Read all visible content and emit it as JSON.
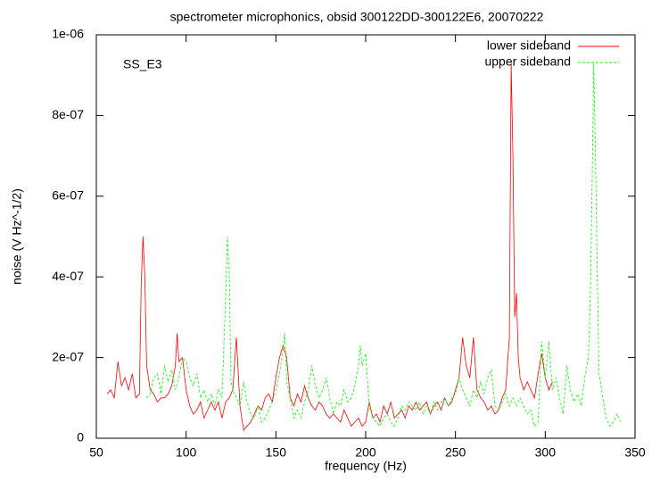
{
  "chart_data": {
    "type": "line",
    "title": "spectrometer microphonics, obsid 300122DD-300122E6, 20070222",
    "xlabel": "frequency (Hz)",
    "ylabel": "noise (V Hz^-1/2)",
    "annotation": "SS_E3",
    "xlim": [
      50,
      350
    ],
    "xticks": [
      50,
      100,
      150,
      200,
      250,
      300,
      350
    ],
    "ylim": [
      0,
      1e-06
    ],
    "yticks": [
      0,
      {
        "value": 2e-07,
        "label": "2e-07"
      },
      {
        "value": 4e-07,
        "label": "4e-07"
      },
      {
        "value": 6e-07,
        "label": "6e-07"
      },
      {
        "value": 8e-07,
        "label": "8e-07"
      },
      {
        "value": 1e-06,
        "label": "1e-06"
      }
    ],
    "legend": "top-right",
    "series": [
      {
        "name": "lower sideband",
        "color": "#ff0000",
        "dash": false,
        "x": [
          56,
          58,
          60,
          62,
          64,
          66,
          68,
          70,
          72,
          74,
          75,
          76,
          77,
          78,
          80,
          82,
          84,
          86,
          88,
          90,
          92,
          94,
          95,
          96,
          98,
          100,
          102,
          104,
          106,
          108,
          110,
          112,
          114,
          116,
          118,
          120,
          122,
          124,
          126,
          128,
          130,
          132,
          134,
          136,
          138,
          140,
          142,
          144,
          146,
          148,
          150,
          152,
          154,
          156,
          158,
          160,
          162,
          164,
          166,
          168,
          170,
          172,
          174,
          176,
          178,
          180,
          182,
          184,
          186,
          188,
          190,
          192,
          194,
          196,
          198,
          200,
          202,
          204,
          206,
          208,
          210,
          212,
          214,
          216,
          218,
          220,
          222,
          224,
          226,
          228,
          230,
          232,
          234,
          236,
          238,
          240,
          242,
          244,
          246,
          248,
          250,
          252,
          254,
          256,
          258,
          260,
          262,
          264,
          266,
          268,
          270,
          272,
          274,
          276,
          278,
          280,
          281,
          282,
          283,
          284,
          285,
          286,
          288,
          290,
          292,
          294,
          296,
          298,
          300,
          302,
          304
        ],
        "values": [
          1.1e-07,
          1.2e-07,
          1e-07,
          1.9e-07,
          1.3e-07,
          1.5e-07,
          1.2e-07,
          1.6e-07,
          1e-07,
          1.1e-07,
          3.8e-07,
          5e-07,
          4e-07,
          1.8e-07,
          1.2e-07,
          1.1e-07,
          9e-08,
          1e-07,
          1e-07,
          1.1e-07,
          1.3e-07,
          1.8e-07,
          2.6e-07,
          1.9e-07,
          2e-07,
          1.2e-07,
          8e-08,
          6e-08,
          7e-08,
          9e-08,
          5e-08,
          7e-08,
          9e-08,
          7e-08,
          9e-08,
          5e-08,
          9e-08,
          1e-07,
          1.2e-07,
          2.5e-07,
          8e-08,
          2e-08,
          3e-08,
          4e-08,
          6e-08,
          8e-08,
          7e-08,
          1e-07,
          1.1e-07,
          9e-08,
          1.5e-07,
          2e-07,
          2.3e-07,
          2e-07,
          1e-07,
          8e-08,
          1.1e-07,
          9e-08,
          1.3e-07,
          1e-07,
          8e-08,
          7e-08,
          9e-08,
          8e-08,
          6e-08,
          5e-08,
          6e-08,
          5e-08,
          4e-08,
          7e-08,
          5e-08,
          3e-08,
          4e-08,
          5e-08,
          3e-08,
          4e-08,
          9e-08,
          5e-08,
          6e-08,
          4e-08,
          8e-08,
          6e-08,
          9e-08,
          5e-08,
          6e-08,
          7e-08,
          5e-08,
          8e-08,
          7e-08,
          9e-08,
          7e-08,
          8e-08,
          9e-08,
          6e-08,
          8e-08,
          9e-08,
          7e-08,
          1e-07,
          8e-08,
          9e-08,
          1.2e-07,
          1.5e-07,
          2.5e-07,
          1.8e-07,
          1.5e-07,
          2.5e-07,
          1.2e-07,
          1e-07,
          9e-08,
          7e-08,
          8e-08,
          6e-08,
          7e-08,
          1e-07,
          1.2e-07,
          2.5e-07,
          9.3e-07,
          7e-07,
          3e-07,
          3.6e-07,
          2e-07,
          1.5e-07,
          1.2e-07,
          1.4e-07,
          1.2e-07,
          1e-07,
          1.6e-07,
          2.1e-07,
          1.5e-07,
          1.2e-07,
          1.4e-07
        ]
      },
      {
        "name": "upper sideband",
        "color": "#00ff00",
        "dash": true,
        "x": [
          78,
          80,
          82,
          84,
          86,
          88,
          90,
          92,
          94,
          96,
          98,
          100,
          102,
          104,
          106,
          108,
          110,
          112,
          114,
          116,
          118,
          120,
          122,
          123,
          124,
          125,
          126,
          128,
          130,
          132,
          134,
          136,
          138,
          140,
          142,
          144,
          146,
          148,
          150,
          152,
          154,
          155,
          156,
          158,
          160,
          162,
          164,
          166,
          168,
          170,
          172,
          174,
          176,
          178,
          180,
          182,
          184,
          186,
          188,
          190,
          192,
          194,
          196,
          197,
          198,
          200,
          202,
          204,
          206,
          208,
          210,
          212,
          214,
          216,
          218,
          220,
          222,
          224,
          226,
          228,
          230,
          232,
          234,
          236,
          238,
          240,
          242,
          244,
          246,
          248,
          250,
          252,
          254,
          256,
          258,
          260,
          262,
          264,
          266,
          268,
          270,
          272,
          274,
          276,
          278,
          280,
          282,
          284,
          286,
          288,
          290,
          292,
          294,
          296,
          298,
          300,
          302,
          304,
          306,
          308,
          310,
          312,
          314,
          316,
          318,
          320,
          322,
          324,
          325,
          326,
          327,
          328,
          329,
          330,
          332,
          334,
          336,
          338,
          340,
          342
        ],
        "values": [
          1e-07,
          1.1e-07,
          1.5e-07,
          1.6e-07,
          1.1e-07,
          1.8e-07,
          1.4e-07,
          1.7e-07,
          1.2e-07,
          1.5e-07,
          2e-07,
          1.9e-07,
          1.5e-07,
          1.3e-07,
          1.6e-07,
          1e-07,
          1.2e-07,
          9e-08,
          1.1e-07,
          8e-08,
          1.2e-07,
          1e-07,
          3.5e-07,
          5e-07,
          4.1e-07,
          1.4e-07,
          1.2e-07,
          1e-07,
          8e-08,
          1.4e-07,
          9e-08,
          6e-08,
          5e-08,
          8e-08,
          4e-08,
          5e-08,
          7e-08,
          9e-08,
          1.2e-07,
          1.6e-07,
          2.2e-07,
          2.6e-07,
          1.4e-07,
          1e-07,
          5e-08,
          7e-08,
          5e-08,
          9e-08,
          1.2e-07,
          1.8e-07,
          1.3e-07,
          1e-07,
          1.2e-07,
          1.5e-07,
          1e-07,
          6e-08,
          9e-08,
          8e-08,
          1.2e-07,
          9e-08,
          1e-07,
          1.3e-07,
          1.8e-07,
          2.3e-07,
          1.8e-07,
          2.1e-07,
          8e-08,
          5e-08,
          4e-08,
          3e-08,
          5e-08,
          6e-08,
          4e-08,
          3e-08,
          5e-08,
          8e-08,
          7e-08,
          9e-08,
          8e-08,
          7e-08,
          9e-08,
          6e-08,
          8e-08,
          6e-08,
          9e-08,
          7e-08,
          9e-08,
          1e-07,
          8e-08,
          1e-07,
          1.1e-07,
          1.5e-07,
          1.2e-07,
          1e-07,
          8e-08,
          1.2e-07,
          1e-07,
          1.4e-07,
          1.1e-07,
          1.5e-07,
          1.7e-07,
          8e-08,
          7e-08,
          9e-08,
          1.1e-07,
          8e-08,
          1e-07,
          8e-08,
          1e-07,
          8e-08,
          6e-08,
          7e-08,
          3e-08,
          4e-08,
          2.4e-07,
          1.5e-07,
          2.4e-07,
          1.2e-07,
          1.5e-07,
          1e-07,
          6e-08,
          1.8e-07,
          1.2e-07,
          9e-08,
          1.1e-07,
          8e-08,
          1.5e-07,
          2e-07,
          3.3e-07,
          6e-07,
          9.3e-07,
          7e-07,
          4e-07,
          1.6e-07,
          1e-07,
          5e-08,
          3e-08,
          4e-08,
          6e-08,
          4e-08
        ]
      }
    ]
  }
}
